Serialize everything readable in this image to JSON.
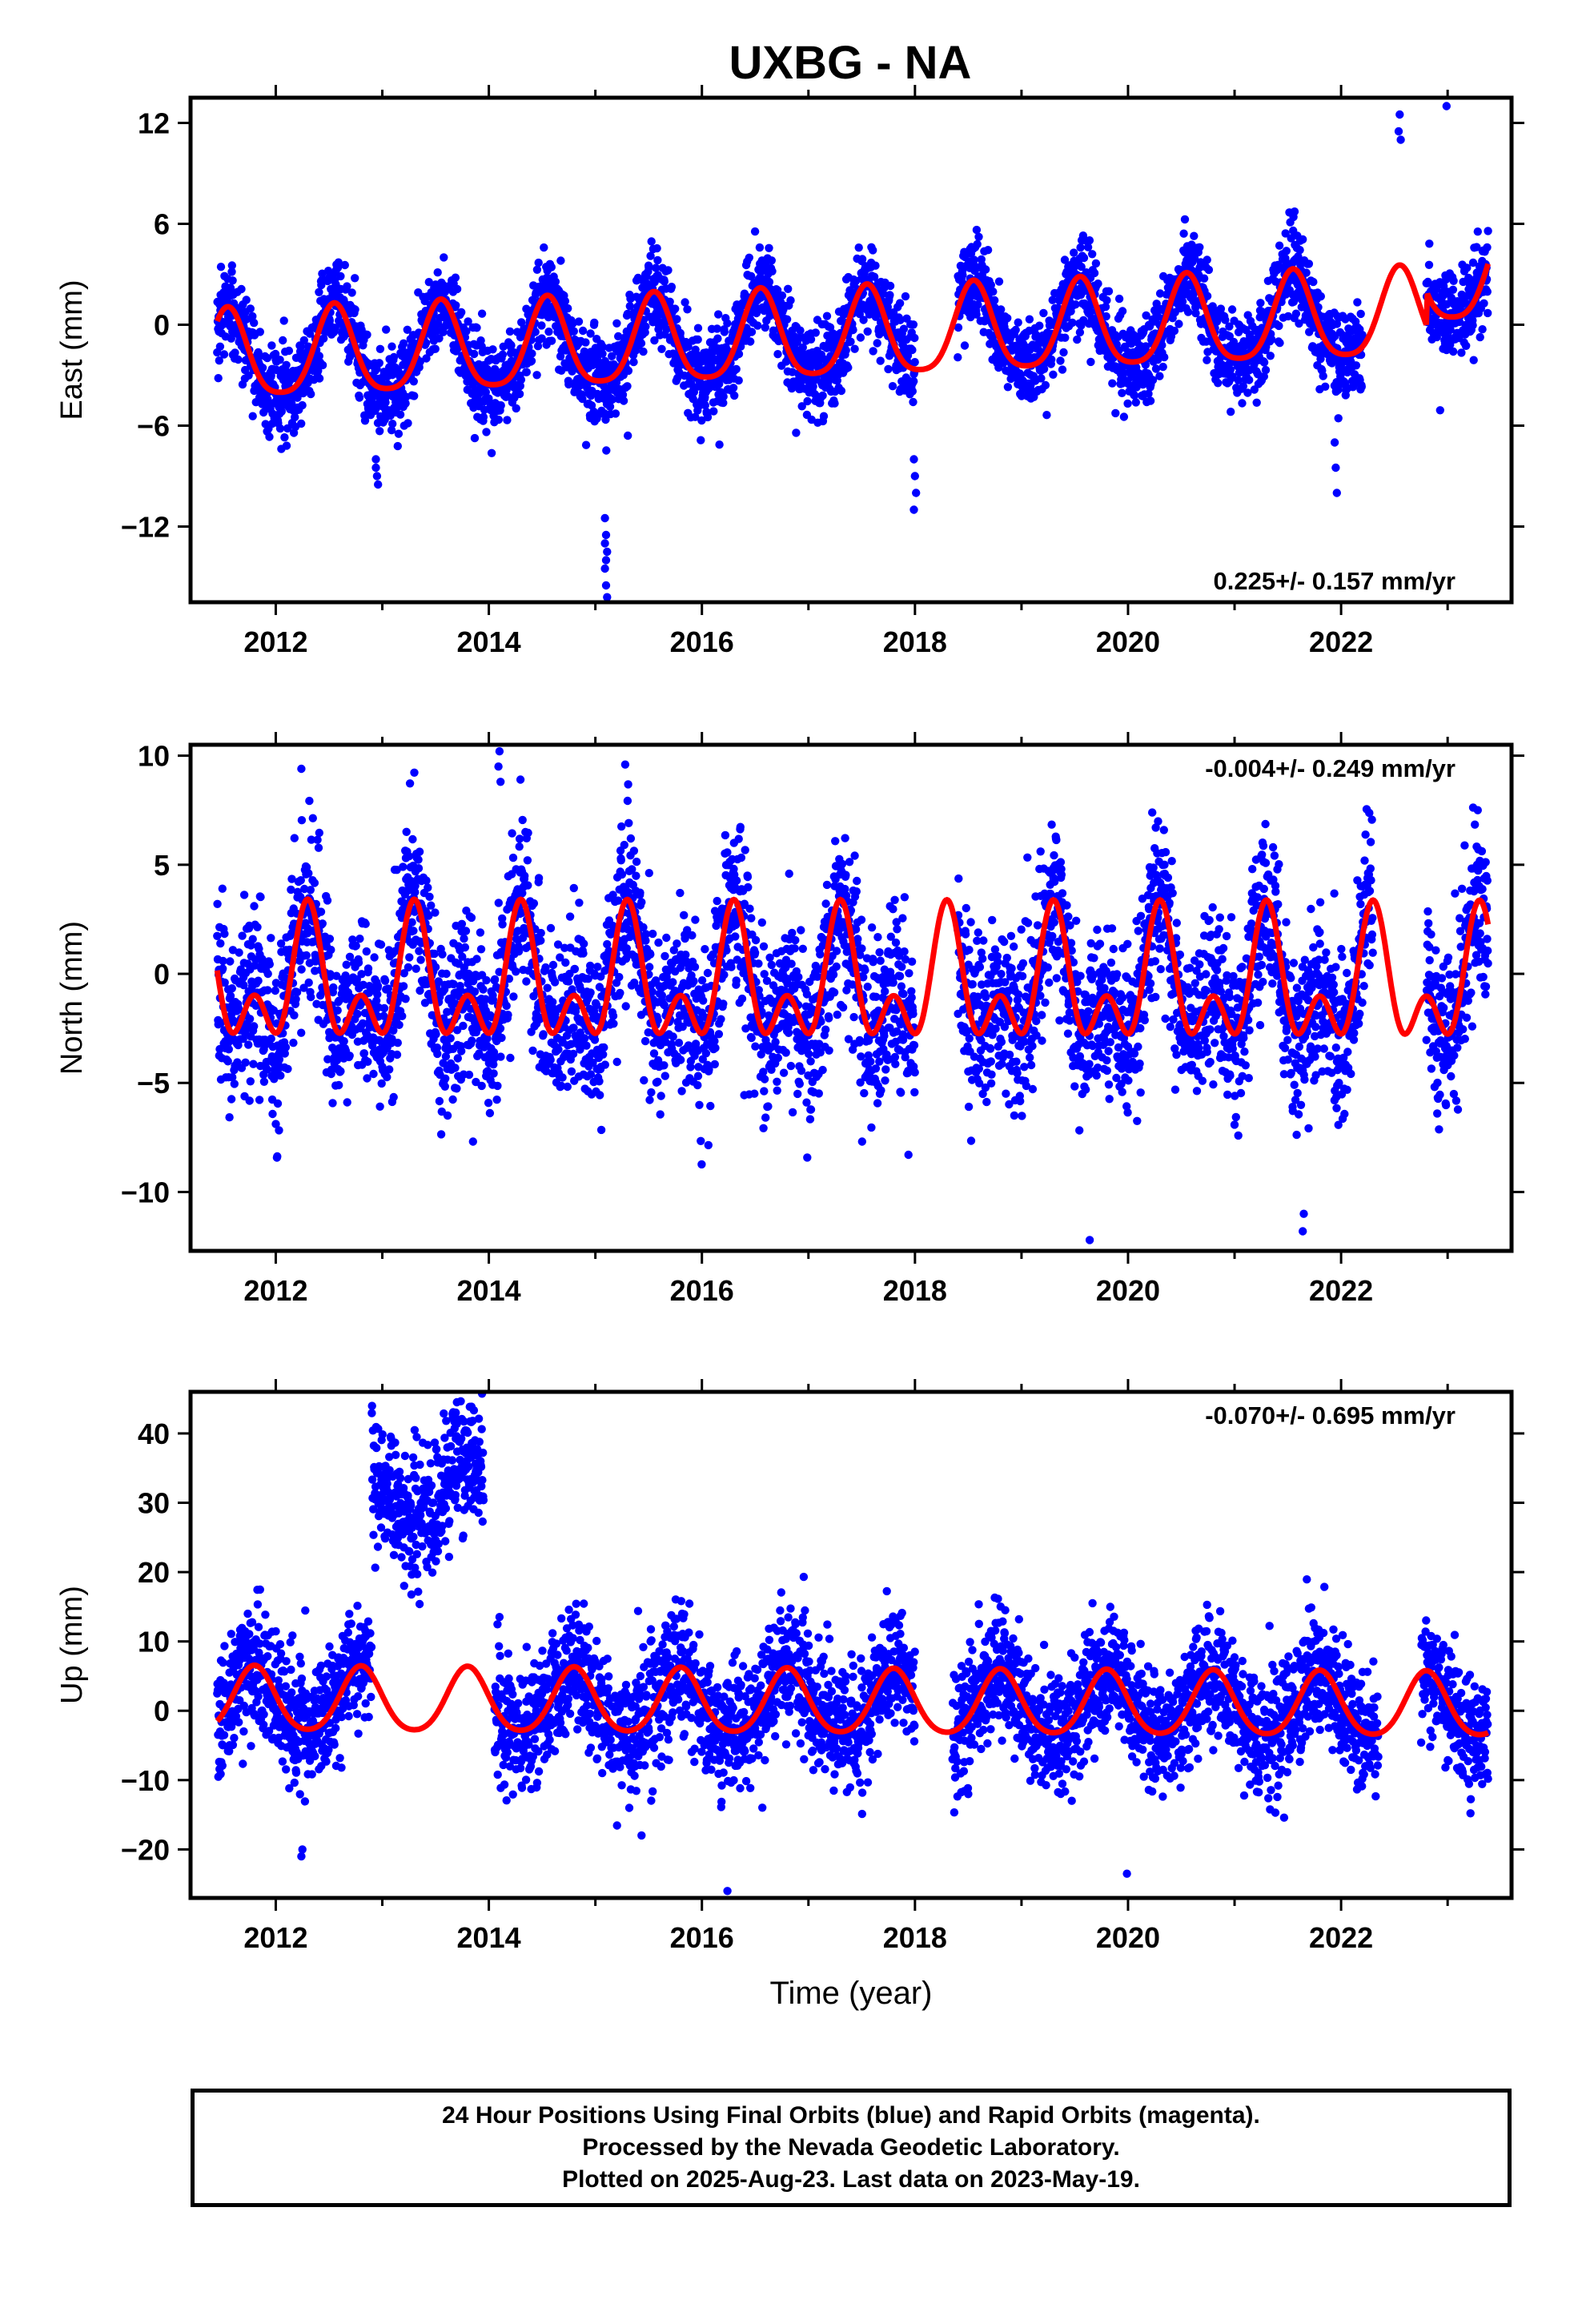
{
  "title": "UXBG - NA",
  "chart_data": [
    {
      "type": "scatter",
      "name": "east",
      "ylabel": "East (mm)",
      "xlabel": "",
      "xlim": [
        2011.2,
        2023.6
      ],
      "ylim": [
        -16.5,
        13.5
      ],
      "xticks": [
        2012,
        2014,
        2016,
        2018,
        2020,
        2022
      ],
      "yticks": [
        12,
        6,
        0,
        -6,
        -12
      ],
      "ytick_labels": [
        "12",
        "6",
        "0",
        "−6",
        "−12"
      ],
      "rate_text": "0.225+/- 0.157 mm/yr",
      "rate_position": "bottom-right",
      "model": {
        "offset": -0.8,
        "trend": 0.225,
        "annual_amp": 2.6,
        "annual_phase_peak": 0.55,
        "semi_amp": 0.5,
        "ref_year": 2017.0,
        "step_year": 2022.8,
        "step": 2.0
      },
      "spread": 1.3,
      "gaps": [
        [
          2018.0,
          2018.4
        ],
        [
          2022.2,
          2022.8
        ]
      ],
      "outlier_clusters": [
        {
          "x": 2015.1,
          "ys": [
            -11.5,
            -12.5,
            -13.5,
            -14.5,
            -15.5,
            -16.2,
            -13.0,
            -14.0
          ]
        },
        {
          "x": 2012.95,
          "ys": [
            -8.0,
            -9.0,
            -9.5,
            -8.5
          ]
        },
        {
          "x": 2018.0,
          "ys": [
            -8.0,
            -9.0,
            -10.0,
            -11.0
          ]
        },
        {
          "x": 2021.95,
          "ys": [
            -7.0,
            -8.5,
            -10.0
          ]
        },
        {
          "x": 2022.55,
          "ys": [
            11.5,
            12.5,
            11.0
          ]
        },
        {
          "x": 2023.0,
          "ys": [
            13.0
          ]
        }
      ]
    },
    {
      "type": "scatter",
      "name": "north",
      "ylabel": "North (mm)",
      "xlabel": "",
      "xlim": [
        2011.2,
        2023.6
      ],
      "ylim": [
        -12.7,
        10.5
      ],
      "xticks": [
        2012,
        2014,
        2016,
        2018,
        2020,
        2022
      ],
      "yticks": [
        10,
        5,
        0,
        -5,
        -10
      ],
      "ytick_labels": [
        "10",
        "5",
        "0",
        "−5",
        "−10"
      ],
      "rate_text": "-0.004+/- 0.249 mm/yr",
      "rate_position": "top-right",
      "model": {
        "offset": -0.6,
        "trend": -0.004,
        "annual_amp": 2.2,
        "annual_phase_peak": 0.3,
        "semi_amp": 1.8,
        "ref_year": 2017.0,
        "step_year": 2030.0,
        "step": 0
      },
      "spread": 2.0,
      "gaps": [
        [
          2018.0,
          2018.4
        ],
        [
          2022.3,
          2022.8
        ]
      ],
      "outlier_clusters": [
        {
          "x": 2014.1,
          "ys": [
            9.5,
            10.2,
            8.8
          ]
        },
        {
          "x": 2019.65,
          "ys": [
            -12.2
          ]
        },
        {
          "x": 2021.65,
          "ys": [
            -11.8,
            -11.0
          ]
        },
        {
          "x": 2012.25,
          "ys": [
            9.4
          ]
        }
      ]
    },
    {
      "type": "scatter",
      "name": "up",
      "ylabel": "Up (mm)",
      "xlabel": "Time (year)",
      "xlim": [
        2011.2,
        2023.6
      ],
      "ylim": [
        -27,
        46
      ],
      "xticks": [
        2012,
        2014,
        2016,
        2018,
        2020,
        2022
      ],
      "yticks": [
        40,
        30,
        20,
        10,
        0,
        -10,
        -20
      ],
      "ytick_labels": [
        "40",
        "30",
        "20",
        "10",
        "0",
        "−10",
        "−20"
      ],
      "rate_text": "-0.070+/- 0.695 mm/yr",
      "rate_position": "top-right",
      "model": {
        "offset": 1.0,
        "trend": -0.07,
        "annual_amp": 4.6,
        "annual_phase_peak": 0.8,
        "semi_amp": 0.6,
        "ref_year": 2017.0,
        "step_year": 2030.0,
        "step": 0
      },
      "spread": 4.5,
      "gaps": [
        [
          2013.95,
          2014.05
        ],
        [
          2018.0,
          2018.35
        ],
        [
          2022.35,
          2022.75
        ]
      ],
      "segment_offsets": [
        {
          "from": 2012.9,
          "to": 2013.95,
          "offset": 30.0,
          "spread": 5.0
        }
      ],
      "outlier_clusters": [
        {
          "x": 2013.7,
          "ys": [
            43.0,
            44.5,
            42.0
          ]
        },
        {
          "x": 2016.25,
          "ys": [
            -26.0
          ]
        },
        {
          "x": 2020.0,
          "ys": [
            -23.5
          ]
        },
        {
          "x": 2012.25,
          "ys": [
            -21.0,
            -20.0
          ]
        }
      ]
    }
  ],
  "colors": {
    "data_points": "#0000ff",
    "model_line": "#ff0000",
    "frame": "#000000"
  },
  "footer": {
    "line1": "24 Hour Positions Using Final Orbits (blue) and Rapid Orbits (magenta).",
    "line2": "Processed by the Nevada Geodetic Laboratory.",
    "line3": "Plotted on 2025-Aug-23. Last data on 2023-May-19."
  }
}
